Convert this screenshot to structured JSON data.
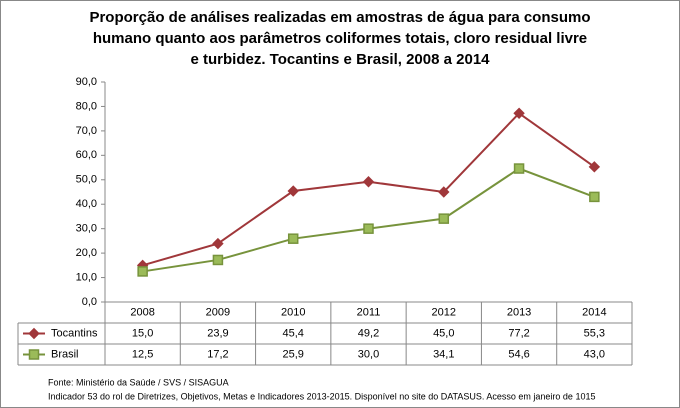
{
  "chart_data": {
    "type": "line",
    "title": [
      "Proporção de análises realizadas em amostras de água para consumo",
      "humano quanto aos parâmetros coliformes totais, cloro residual livre",
      "e turbidez. Tocantins e Brasil, 2008 a 2014"
    ],
    "categories": [
      "2008",
      "2009",
      "2010",
      "2011",
      "2012",
      "2013",
      "2014"
    ],
    "series": [
      {
        "name": "Tocantins",
        "color": "#a0373a",
        "marker": "diamond",
        "values": [
          15.0,
          23.9,
          45.4,
          49.2,
          45.0,
          77.2,
          55.3
        ],
        "value_labels": [
          "15,0",
          "23,9",
          "45,4",
          "49,2",
          "45,0",
          "77,2",
          "55,3"
        ]
      },
      {
        "name": "Brasil",
        "color": "#77933c",
        "marker": "square",
        "values": [
          12.5,
          17.2,
          25.9,
          30.0,
          34.1,
          54.6,
          43.0
        ],
        "value_labels": [
          "12,5",
          "17,2",
          "25,9",
          "30,0",
          "34,1",
          "54,6",
          "43,0"
        ]
      }
    ],
    "ylim": [
      0,
      90
    ],
    "yticks": [
      {
        "value": 0,
        "label": "0,0"
      },
      {
        "value": 10,
        "label": "10,0"
      },
      {
        "value": 20,
        "label": "20,0"
      },
      {
        "value": 30,
        "label": "30,0"
      },
      {
        "value": 40,
        "label": "40,0"
      },
      {
        "value": 50,
        "label": "50,0"
      },
      {
        "value": 60,
        "label": "60,0"
      },
      {
        "value": 70,
        "label": "70,0"
      },
      {
        "value": 80,
        "label": "80,0"
      },
      {
        "value": 90,
        "label": "90,0"
      }
    ],
    "grid": false,
    "notes": [
      "Fonte: Ministério da Saúde / SVS / SISAGUA",
      "Indicador 53 do rol de Diretrizes, Objetivos, Metas e Indicadores 2013-2015. Disponível no site do DATASUS. Acesso em janeiro de 1015"
    ]
  }
}
